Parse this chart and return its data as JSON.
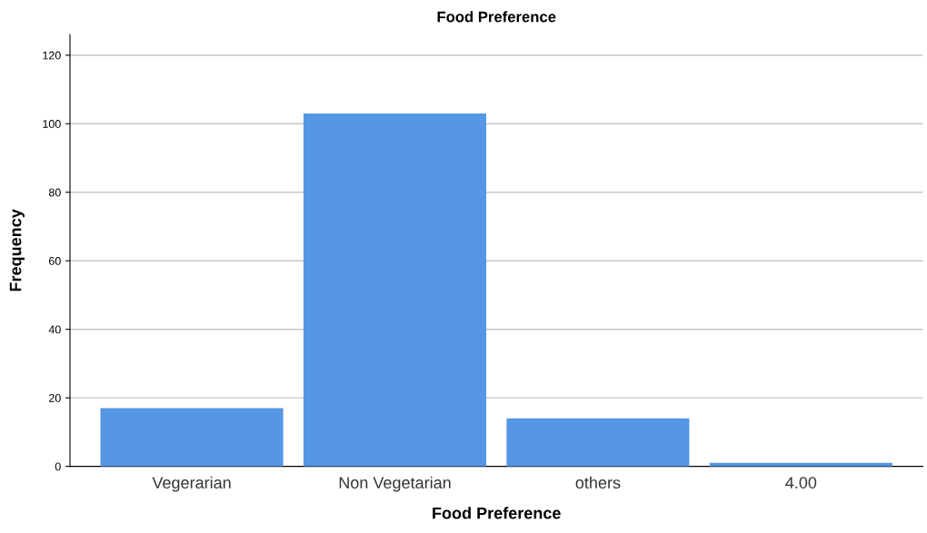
{
  "chart_data": {
    "type": "bar",
    "title": "Food Preference",
    "xlabel": "Food Preference",
    "ylabel": "Frequency",
    "categories": [
      "Vegerarian",
      "Non Vegetarian",
      "others",
      "4.00"
    ],
    "values": [
      17,
      103,
      14,
      1
    ],
    "color": "#5596e5",
    "ylim": [
      0,
      126
    ],
    "yticks": [
      0,
      20,
      40,
      60,
      80,
      100,
      120
    ],
    "grid": "y",
    "legend": false
  }
}
